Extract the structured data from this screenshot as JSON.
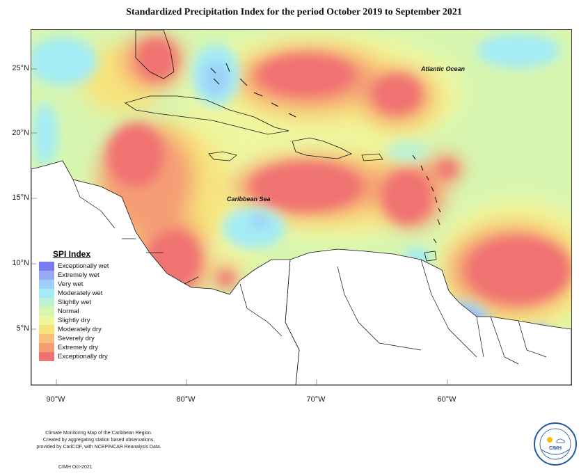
{
  "title": "Standardized Precipitation Index for the period October 2019 to September 2021",
  "latitude_labels": [
    "25°N",
    "20°N",
    "15°N",
    "10°N",
    "5°N"
  ],
  "longitude_labels": [
    "90°W",
    "80°W",
    "70°W",
    "60°W"
  ],
  "ocean_labels": {
    "atlantic": "Atlantic Ocean",
    "caribbean": "Caribbean Sea"
  },
  "legend": {
    "title": "SPI Index",
    "items": [
      {
        "label": "Exceptionally wet",
        "color": "#7b7bf0"
      },
      {
        "label": "Extremely wet",
        "color": "#99aaf5"
      },
      {
        "label": "Very wet",
        "color": "#9ed0f7"
      },
      {
        "label": "Moderately wet",
        "color": "#a4ecf4"
      },
      {
        "label": "Slightly wet",
        "color": "#bdf2d4"
      },
      {
        "label": "Normal",
        "color": "#d7f6b0"
      },
      {
        "label": "Slightly dry",
        "color": "#eef7a0"
      },
      {
        "label": "Moderately dry",
        "color": "#f7e37c"
      },
      {
        "label": "Severely dry",
        "color": "#f6c07a"
      },
      {
        "label": "Extremely dry",
        "color": "#f59d74"
      },
      {
        "label": "Exceptionally dry",
        "color": "#f07272"
      }
    ]
  },
  "footer": {
    "line1": "Climate Monitoring Map of the Caribbean Region.",
    "line2": "Created by aggregating station based observations,",
    "line3": "provided by CariCOF, with NCEP/NCAR Reanalysis Data.",
    "date": "CIMH Oct-2021"
  },
  "logo": {
    "text": "CIMH"
  }
}
